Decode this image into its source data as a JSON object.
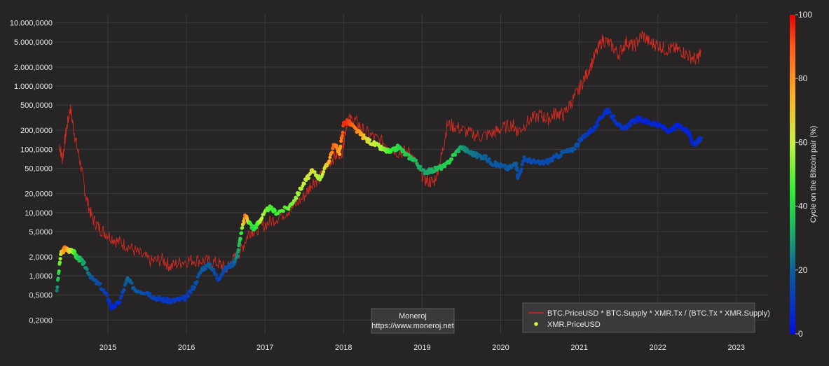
{
  "chart_data": {
    "type": "scatter",
    "yscale": "log",
    "grid": true,
    "background": "#262424",
    "x_ticks": [
      "2015",
      "2016",
      "2017",
      "2018",
      "2019",
      "2020",
      "2021",
      "2022",
      "2023"
    ],
    "y_ticks": [
      {
        "value": 10000000,
        "label": "10.000,0000"
      },
      {
        "value": 5000000,
        "label": "5.000,0000"
      },
      {
        "value": 2000000,
        "label": "2.000,0000"
      },
      {
        "value": 1000000,
        "label": "1.000,0000"
      },
      {
        "value": 500000,
        "label": "500,0000"
      },
      {
        "value": 200000,
        "label": "200,0000"
      },
      {
        "value": 100000,
        "label": "100,0000"
      },
      {
        "value": 50000,
        "label": "50,0000"
      },
      {
        "value": 20000,
        "label": "20,0000"
      },
      {
        "value": 10000,
        "label": "10,0000"
      },
      {
        "value": 5000,
        "label": "5,0000"
      },
      {
        "value": 2000,
        "label": "2,0000"
      },
      {
        "value": 1000,
        "label": "1,0000"
      },
      {
        "value": 500,
        "label": "0,5000"
      },
      {
        "value": 200,
        "label": "0,2000"
      }
    ],
    "series": [
      {
        "name": "BTC.PriceUSD * BTC.Supply * XMR.Tx / (BTC.Tx * XMR.Supply)",
        "kind": "line",
        "color": "#d42a20",
        "x": [
          2014.38,
          2014.42,
          2014.47,
          2014.52,
          2014.58,
          2014.65,
          2014.72,
          2014.8,
          2014.9,
          2015.0,
          2015.12,
          2015.25,
          2015.4,
          2015.55,
          2015.7,
          2015.8,
          2015.95,
          2016.1,
          2016.25,
          2016.4,
          2016.5,
          2016.6,
          2016.7,
          2016.8,
          2016.9,
          2017.05,
          2017.2,
          2017.35,
          2017.5,
          2017.6,
          2017.7,
          2017.8,
          2017.9,
          2017.98,
          2018.05,
          2018.15,
          2018.25,
          2018.4,
          2018.55,
          2018.7,
          2018.85,
          2018.95,
          2019.05,
          2019.15,
          2019.25,
          2019.32,
          2019.45,
          2019.6,
          2019.75,
          2019.9,
          2020.0,
          2020.15,
          2020.22,
          2020.35,
          2020.5,
          2020.6,
          2020.7,
          2020.8,
          2020.9,
          2021.0,
          2021.1,
          2021.2,
          2021.3,
          2021.4,
          2021.5,
          2021.6,
          2021.7,
          2021.8,
          2021.9,
          2022.0,
          2022.1,
          2022.2,
          2022.3,
          2022.4,
          2022.5,
          2022.55
        ],
        "y": [
          120000,
          70000,
          200000,
          450000,
          160000,
          60000,
          18000,
          8000,
          5500,
          4500,
          3500,
          3000,
          2200,
          1700,
          1800,
          1400,
          1700,
          1800,
          1700,
          1600,
          1300,
          1800,
          2600,
          5000,
          5500,
          7000,
          9000,
          12000,
          18000,
          30000,
          35000,
          60000,
          80000,
          95000,
          300000,
          280000,
          200000,
          150000,
          120000,
          90000,
          90000,
          50000,
          32000,
          30000,
          80000,
          250000,
          220000,
          180000,
          160000,
          180000,
          210000,
          250000,
          190000,
          280000,
          350000,
          300000,
          380000,
          350000,
          550000,
          900000,
          1600000,
          3000000,
          5500000,
          4500000,
          3200000,
          5000000,
          4200000,
          6500000,
          4800000,
          4500000,
          3800000,
          3900000,
          3600000,
          3000000,
          2600000,
          3500000
        ]
      },
      {
        "name": "XMR.PriceUSD",
        "kind": "scatter",
        "marker_color": "#d4f542",
        "x": [
          2014.35,
          2014.4,
          2014.45,
          2014.5,
          2014.55,
          2014.6,
          2014.65,
          2014.7,
          2014.8,
          2014.9,
          2015.0,
          2015.05,
          2015.15,
          2015.25,
          2015.35,
          2015.5,
          2015.6,
          2015.7,
          2015.8,
          2015.9,
          2016.0,
          2016.1,
          2016.2,
          2016.3,
          2016.4,
          2016.5,
          2016.6,
          2016.65,
          2016.7,
          2016.75,
          2016.8,
          2016.85,
          2016.9,
          2016.95,
          2017.05,
          2017.15,
          2017.3,
          2017.4,
          2017.5,
          2017.6,
          2017.7,
          2017.8,
          2017.88,
          2017.95,
          2018.0,
          2018.05,
          2018.1,
          2018.2,
          2018.3,
          2018.4,
          2018.5,
          2018.6,
          2018.7,
          2018.8,
          2018.9,
          2019.0,
          2019.1,
          2019.2,
          2019.3,
          2019.4,
          2019.5,
          2019.6,
          2019.7,
          2019.8,
          2019.9,
          2020.0,
          2020.1,
          2020.2,
          2020.22,
          2020.3,
          2020.4,
          2020.5,
          2020.6,
          2020.7,
          2020.8,
          2020.9,
          2021.0,
          2021.1,
          2021.2,
          2021.3,
          2021.35,
          2021.45,
          2021.55,
          2021.65,
          2021.75,
          2021.85,
          2021.95,
          2022.05,
          2022.15,
          2022.25,
          2022.35,
          2022.4,
          2022.45,
          2022.5,
          2022.55
        ],
        "y": [
          600,
          2200,
          2700,
          2500,
          2600,
          2000,
          1800,
          1500,
          900,
          700,
          450,
          300,
          400,
          900,
          600,
          550,
          450,
          420,
          400,
          420,
          450,
          700,
          1300,
          1500,
          900,
          1300,
          1600,
          2200,
          5000,
          9000,
          7000,
          5500,
          6500,
          8000,
          12000,
          10000,
          12000,
          18000,
          30000,
          45000,
          35000,
          60000,
          120000,
          90000,
          250000,
          280000,
          240000,
          180000,
          140000,
          120000,
          100000,
          90000,
          110000,
          80000,
          70000,
          45000,
          45000,
          50000,
          55000,
          80000,
          110000,
          90000,
          80000,
          75000,
          60000,
          55000,
          50000,
          60000,
          35000,
          70000,
          65000,
          60000,
          65000,
          75000,
          90000,
          95000,
          130000,
          180000,
          220000,
          350000,
          420000,
          300000,
          200000,
          260000,
          300000,
          280000,
          250000,
          230000,
          190000,
          240000,
          200000,
          180000,
          120000,
          130000,
          150000
        ],
        "cycle_pct": [
          25,
          60,
          85,
          70,
          55,
          40,
          35,
          30,
          18,
          15,
          10,
          5,
          8,
          22,
          18,
          15,
          12,
          10,
          10,
          10,
          10,
          15,
          18,
          20,
          12,
          15,
          18,
          28,
          45,
          90,
          50,
          40,
          45,
          60,
          48,
          45,
          50,
          55,
          60,
          65,
          55,
          70,
          90,
          75,
          95,
          95,
          90,
          80,
          65,
          60,
          55,
          45,
          40,
          38,
          35,
          30,
          32,
          35,
          38,
          40,
          30,
          25,
          22,
          20,
          18,
          18,
          18,
          20,
          15,
          15,
          15,
          15,
          15,
          15,
          17,
          18,
          15,
          10,
          8,
          8,
          8,
          8,
          8,
          8,
          5,
          5,
          5,
          5,
          5,
          5,
          5,
          5,
          5,
          8,
          8
        ]
      }
    ],
    "colorbar": {
      "title": "Cycle on the Bitcoin pair (%)",
      "min": 0,
      "max": 100,
      "ticks": [
        0,
        20,
        40,
        60,
        80,
        100
      ]
    },
    "annotation": {
      "line1": "Moneroj",
      "line2": "https://www.moneroj.net"
    },
    "legend": {
      "position": "bottom-right",
      "items": [
        {
          "label": "BTC.PriceUSD * BTC.Supply * XMR.Tx / (BTC.Tx * XMR.Supply)",
          "color": "#d42a20",
          "symbol": "line"
        },
        {
          "label": "XMR.PriceUSD",
          "color": "#d4f542",
          "symbol": "dot"
        }
      ]
    }
  }
}
